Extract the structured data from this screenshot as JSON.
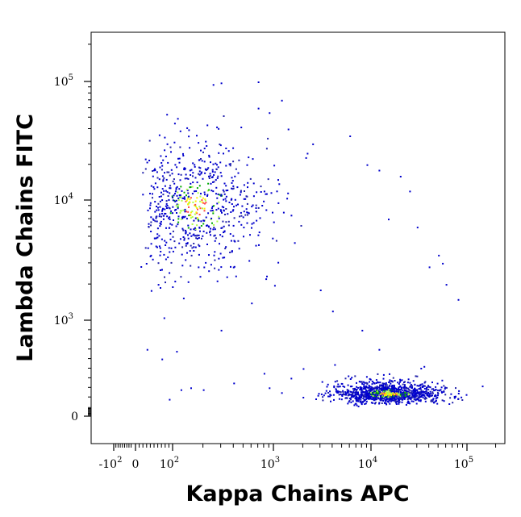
{
  "chart_data": {
    "type": "scatter",
    "style": "flow-cytometry density dot plot (biexponential axes)",
    "title": "",
    "xlabel": "Kappa Chains APC",
    "ylabel": "Lambda Chains FITC",
    "x_scale": "biexponential",
    "y_scale": "biexponential",
    "xlim": [
      -300,
      250000
    ],
    "ylim": [
      -80,
      250000
    ],
    "grid": false,
    "x_ticks": [
      {
        "value": -100,
        "base": "-10",
        "exp": "2"
      },
      {
        "value": 0,
        "base": "0",
        "exp": ""
      },
      {
        "value": 100,
        "base": "10",
        "exp": "2"
      },
      {
        "value": 1000,
        "base": "10",
        "exp": "3"
      },
      {
        "value": 10000,
        "base": "10",
        "exp": "4"
      },
      {
        "value": 100000,
        "base": "10",
        "exp": "5"
      }
    ],
    "y_ticks": [
      {
        "value": 0,
        "base": "0",
        "exp": ""
      },
      {
        "value": 1000,
        "base": "10",
        "exp": "3"
      },
      {
        "value": 10000,
        "base": "10",
        "exp": "4"
      },
      {
        "value": 100000,
        "base": "10",
        "exp": "5"
      }
    ],
    "density_colors": [
      "#0000cc",
      "#2222aa",
      "#00aa00",
      "#aaff44",
      "#ffee00",
      "#ff4444"
    ],
    "populations": [
      {
        "center": [
          170,
          9000
        ],
        "spread": [
          0.55,
          0.45
        ],
        "count": 720
      },
      {
        "center": [
          15000,
          240
        ],
        "spread": [
          0.45,
          0.16
        ],
        "count": 1150
      }
    ],
    "sparse_points": [
      [
        700,
        100000
      ],
      [
        250,
        95000
      ],
      [
        300,
        98000
      ],
      [
        1400,
        40000
      ],
      [
        2500,
        30000
      ],
      [
        6000,
        35000
      ],
      [
        9000,
        20000
      ],
      [
        12000,
        18000
      ],
      [
        20000,
        16000
      ],
      [
        25000,
        12000
      ],
      [
        15000,
        7000
      ],
      [
        30000,
        6000
      ],
      [
        50000,
        3500
      ],
      [
        55000,
        3000
      ],
      [
        40000,
        2800
      ],
      [
        60000,
        2000
      ],
      [
        80000,
        1500
      ],
      [
        3000,
        1800
      ],
      [
        4000,
        1200
      ],
      [
        8000,
        900
      ],
      [
        12000,
        700
      ],
      [
        1500,
        400
      ],
      [
        2000,
        500
      ],
      [
        900,
        300
      ],
      [
        1200,
        250
      ],
      [
        120,
        280
      ],
      [
        150,
        300
      ],
      [
        200,
        280
      ],
      [
        400,
        350
      ],
      [
        600,
        1400
      ],
      [
        450,
        4000
      ],
      [
        500,
        6000
      ],
      [
        800,
        12000
      ],
      [
        1100,
        15000
      ],
      [
        2200,
        25000
      ],
      [
        700,
        60000
      ],
      [
        900,
        55000
      ],
      [
        1200,
        70000
      ],
      [
        60,
        2000
      ],
      [
        40,
        3500
      ],
      [
        30,
        700
      ],
      [
        70,
        600
      ],
      [
        90,
        180
      ],
      [
        300,
        900
      ],
      [
        800,
        450
      ]
    ]
  }
}
